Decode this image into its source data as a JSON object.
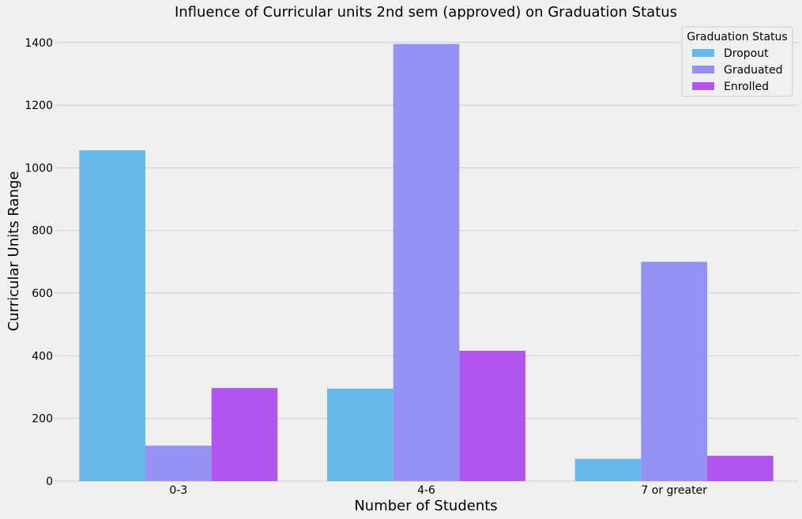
{
  "chart_data": {
    "type": "bar",
    "title": "Influence of Curricular units 2nd sem (approved) on Graduation Status",
    "xlabel": "Number of Students",
    "ylabel": "Curricular Units Range",
    "categories": [
      "0-3",
      "4-6",
      "7 or greater"
    ],
    "series": [
      {
        "name": "Dropout",
        "values": [
          1056,
          295,
          71
        ],
        "color": "#67b8ea"
      },
      {
        "name": "Graduated",
        "values": [
          113,
          1395,
          700
        ],
        "color": "#9592f6"
      },
      {
        "name": "Enrolled",
        "values": [
          297,
          416,
          81
        ],
        "color": "#b056ef"
      }
    ],
    "ylim": [
      0,
      1460
    ],
    "yticks": [
      0,
      200,
      400,
      600,
      800,
      1000,
      1200,
      1400
    ],
    "grid": true,
    "legend": {
      "title": "Graduation Status",
      "placement": "top-right"
    }
  }
}
